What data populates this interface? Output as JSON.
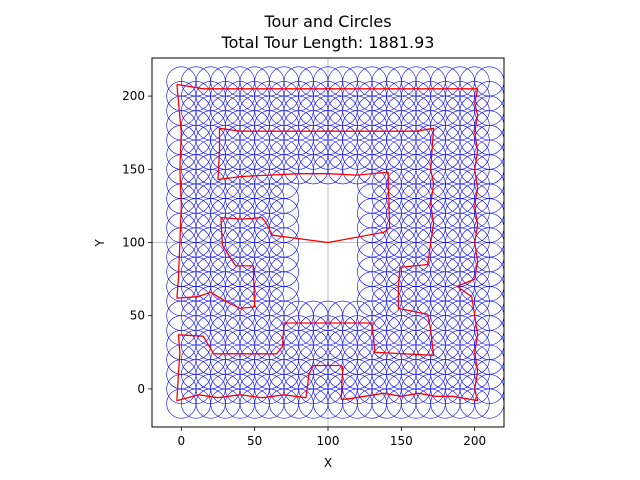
{
  "chart_data": {
    "type": "scatter",
    "title": "Tour and Circles",
    "subtitle": "Total Tour Length: 1881.93",
    "xlabel": "X",
    "ylabel": "Y",
    "xlim": [
      -20,
      220
    ],
    "ylim": [
      -26,
      226
    ],
    "xticks": [
      0,
      50,
      100,
      150,
      200
    ],
    "yticks": [
      0,
      50,
      100,
      150,
      200
    ],
    "grid": true,
    "grid_lines": {
      "x": [
        100
      ],
      "y": [
        100
      ]
    },
    "circles": {
      "x_start": 0,
      "x_end": 210,
      "x_step": 10,
      "y_start": -10,
      "y_end": 210,
      "y_step": 10,
      "radius": 10,
      "excluded_region": {
        "x": [
          80,
          120
        ],
        "y": [
          60,
          140
        ]
      },
      "color": "#0000ff"
    },
    "tour": {
      "color": "#ff0000",
      "points": [
        [
          -3,
          208
        ],
        [
          15,
          205
        ],
        [
          202,
          205
        ],
        [
          200,
          195
        ],
        [
          202,
          187
        ],
        [
          200,
          175
        ],
        [
          202,
          163
        ],
        [
          200,
          150
        ],
        [
          202,
          137
        ],
        [
          200,
          125
        ],
        [
          202,
          112
        ],
        [
          200,
          100
        ],
        [
          202,
          87
        ],
        [
          200,
          75
        ],
        [
          188,
          70
        ],
        [
          198,
          63
        ],
        [
          200,
          50
        ],
        [
          202,
          37
        ],
        [
          200,
          25
        ],
        [
          202,
          12
        ],
        [
          200,
          0
        ],
        [
          202,
          -8
        ],
        [
          185,
          -5
        ],
        [
          173,
          -5
        ],
        [
          162,
          -3
        ],
        [
          150,
          -5
        ],
        [
          138,
          -3
        ],
        [
          125,
          -5
        ],
        [
          112,
          -7
        ],
        [
          109,
          -7
        ],
        [
          110,
          15
        ],
        [
          108,
          16
        ],
        [
          90,
          16
        ],
        [
          87,
          10
        ],
        [
          85,
          -6
        ],
        [
          70,
          -4
        ],
        [
          55,
          -6
        ],
        [
          40,
          -4
        ],
        [
          25,
          -6
        ],
        [
          12,
          -4
        ],
        [
          -3,
          -8
        ],
        [
          -2,
          10
        ],
        [
          -1,
          25
        ],
        [
          -2,
          37
        ],
        [
          15,
          36
        ],
        [
          22,
          24
        ],
        [
          65,
          24
        ],
        [
          69,
          29
        ],
        [
          70,
          45
        ],
        [
          130,
          45
        ],
        [
          132,
          25
        ],
        [
          172,
          23
        ],
        [
          170,
          40
        ],
        [
          168,
          51
        ],
        [
          148,
          55
        ],
        [
          148,
          70
        ],
        [
          149,
          83
        ],
        [
          168,
          85
        ],
        [
          170,
          100
        ],
        [
          172,
          113
        ],
        [
          170,
          126
        ],
        [
          172,
          140
        ],
        [
          170,
          150
        ],
        [
          172,
          178
        ],
        [
          160,
          176
        ],
        [
          140,
          176
        ],
        [
          120,
          176
        ],
        [
          100,
          176
        ],
        [
          80,
          176
        ],
        [
          60,
          176
        ],
        [
          40,
          176
        ],
        [
          26,
          178
        ],
        [
          26,
          163
        ],
        [
          25,
          143
        ],
        [
          40,
          145
        ],
        [
          60,
          146
        ],
        [
          80,
          147
        ],
        [
          100,
          147
        ],
        [
          120,
          146
        ],
        [
          141,
          148
        ],
        [
          142,
          110
        ],
        [
          138,
          107
        ],
        [
          100,
          100
        ],
        [
          62,
          105
        ],
        [
          58,
          113
        ],
        [
          55,
          117
        ],
        [
          42,
          116
        ],
        [
          27,
          117
        ],
        [
          28,
          98
        ],
        [
          37,
          84
        ],
        [
          49,
          84
        ],
        [
          50,
          56
        ],
        [
          40,
          55
        ],
        [
          30,
          60
        ],
        [
          20,
          66
        ],
        [
          11,
          63
        ],
        [
          -3,
          62
        ],
        [
          -2,
          75
        ],
        [
          -1,
          100
        ],
        [
          0,
          125
        ],
        [
          -1,
          150
        ],
        [
          0,
          175
        ],
        [
          -3,
          208
        ]
      ]
    }
  }
}
